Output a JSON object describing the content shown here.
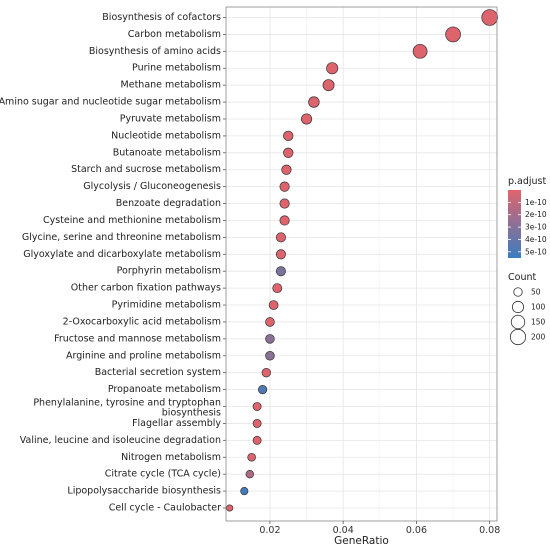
{
  "chart_data": {
    "type": "scatter",
    "xlabel": "GeneRatio",
    "xlim": [
      0.008,
      0.082
    ],
    "xticks": [
      "0.02",
      "0.04",
      "0.06",
      "0.08"
    ],
    "xtick_values": [
      0.02,
      0.04,
      0.06,
      0.08
    ],
    "grid": true,
    "legend_position": "right",
    "color_legend": {
      "title": "p.adjust",
      "labels": [
        "1e-10",
        "2e-10",
        "3e-10",
        "4e-10",
        "5e-10"
      ],
      "values": [
        1e-10,
        2e-10,
        3e-10,
        4e-10,
        5e-10
      ],
      "low_color": "#e0646b",
      "high_color": "#3a7cc0"
    },
    "size_legend": {
      "title": "Count",
      "labels": [
        "50",
        "100",
        "150",
        "200"
      ],
      "values": [
        50,
        100,
        150,
        200
      ]
    },
    "categories": [
      "Biosynthesis of cofactors",
      "Carbon metabolism",
      "Biosynthesis of amino acids",
      "Purine metabolism",
      "Methane metabolism",
      "Amino sugar and nucleotide sugar metabolism",
      "Pyruvate metabolism",
      "Nucleotide metabolism",
      "Butanoate metabolism",
      "Starch and sucrose metabolism",
      "Glycolysis / Gluconeogenesis",
      "Benzoate degradation",
      "Cysteine and methionine metabolism",
      "Glycine, serine and threonine metabolism",
      "Glyoxylate and dicarboxylate metabolism",
      "Porphyrin metabolism",
      "Other carbon fixation pathways",
      "Pyrimidine metabolism",
      "2-Oxocarboxylic acid metabolism",
      "Fructose and mannose metabolism",
      "Arginine and proline metabolism",
      "Bacterial secretion system",
      "Propanoate metabolism",
      "Phenylalanine, tyrosine and tryptophan biosynthesis",
      "Flagellar assembly",
      "Valine, leucine and isoleucine degradation",
      "Nitrogen metabolism",
      "Citrate cycle (TCA cycle)",
      "Lipopolysaccharide biosynthesis",
      "Cell cycle - Caulobacter"
    ],
    "label_lines": {
      "Phenylalanine, tyrosine and tryptophan biosynthesis": [
        "Phenylalanine, tyrosine and tryptophan",
        "biosynthesis"
      ]
    },
    "gene_ratio": [
      0.08,
      0.07,
      0.061,
      0.037,
      0.036,
      0.032,
      0.03,
      0.025,
      0.025,
      0.0245,
      0.024,
      0.024,
      0.024,
      0.023,
      0.023,
      0.023,
      0.022,
      0.021,
      0.02,
      0.02,
      0.02,
      0.019,
      0.018,
      0.0165,
      0.0165,
      0.0165,
      0.015,
      0.0145,
      0.013,
      0.009
    ],
    "count": [
      215,
      189,
      163,
      100,
      97,
      86,
      81,
      68,
      67,
      66,
      65,
      65,
      65,
      63,
      63,
      62,
      59,
      57,
      55,
      55,
      55,
      51,
      49,
      45,
      45,
      45,
      41,
      39,
      35,
      24
    ],
    "p_adjust": [
      1e-11,
      1e-11,
      1e-11,
      1e-11,
      1e-11,
      1e-11,
      1e-11,
      1e-11,
      1e-11,
      1e-11,
      1e-11,
      1e-11,
      1e-11,
      1e-11,
      1e-11,
      3.3e-10,
      1e-11,
      1e-11,
      1e-11,
      2.8e-10,
      2.8e-10,
      1e-11,
      4.8e-10,
      1e-11,
      1e-11,
      1e-11,
      1e-11,
      1.6e-10,
      5.2e-10,
      1e-11
    ]
  }
}
